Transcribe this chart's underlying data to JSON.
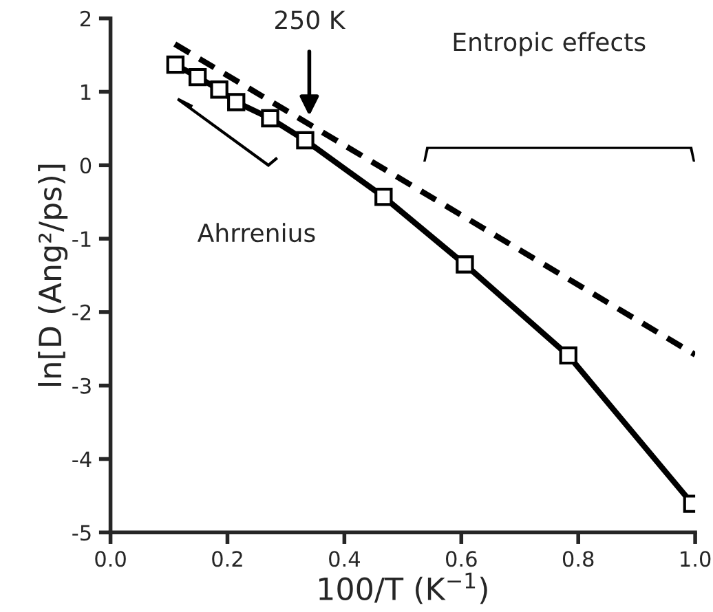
{
  "chart_data": {
    "type": "line",
    "xlabel": "100/T (K$^{−1}$)",
    "ylabel": "ln[D (Ang²/ps)]",
    "xlim": [
      0,
      1.0
    ],
    "ylim": [
      -5,
      2
    ],
    "xticks": [
      {
        "value": 0,
        "label": "0.0"
      },
      {
        "value": 0.2,
        "label": "0.2"
      },
      {
        "value": 0.4,
        "label": "0.4"
      },
      {
        "value": 0.6,
        "label": "0.6"
      },
      {
        "value": 0.8,
        "label": "0.8"
      },
      {
        "value": 1.0,
        "label": "1.0"
      }
    ],
    "yticks": [
      -5,
      -4,
      -3,
      -2,
      -1,
      0,
      1,
      2
    ],
    "grid": false,
    "legend": false,
    "series": [
      {
        "color": "#000000",
        "marker": "square",
        "line_style": "solid",
        "x": [
          0.111,
          0.149,
          0.186,
          0.215,
          0.273,
          0.333,
          0.467,
          0.606,
          0.783,
          0.995
        ],
        "values": [
          1.37,
          1.2,
          1.03,
          0.86,
          0.64,
          0.34,
          -0.43,
          -1.35,
          -2.59,
          -4.61
        ]
      },
      {
        "color": "#000000",
        "marker": "none",
        "line_style": "dashed",
        "x": [
          0.11,
          1.0
        ],
        "values": [
          1.65,
          -2.58
        ]
      }
    ],
    "annotations": [
      "250 K",
      "Ahrrenius",
      "Entropic effects"
    ]
  }
}
